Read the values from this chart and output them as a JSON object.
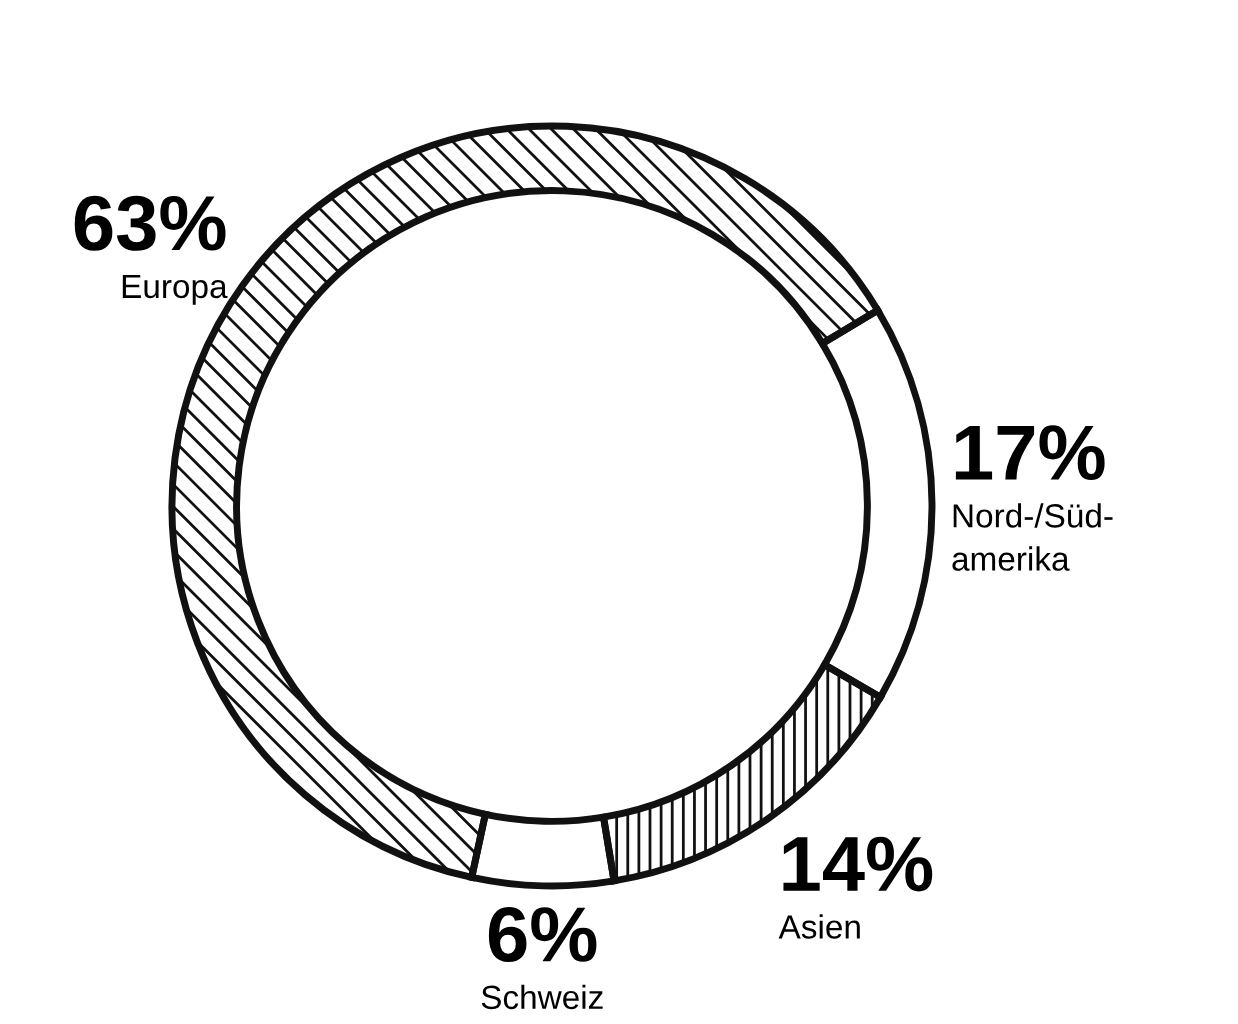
{
  "chart_data": {
    "type": "donut",
    "categories": [
      "Europa",
      "Nord-/Süd-\namerika",
      "Asien",
      "Schweiz"
    ],
    "values": [
      63,
      17,
      14,
      6
    ],
    "colors": [
      "#ffffff",
      "#ffffff",
      "#ffffff",
      "#ffffff"
    ],
    "value_labels": [
      "63%",
      "17%",
      "14%",
      "6%"
    ],
    "legend": false
  }
}
